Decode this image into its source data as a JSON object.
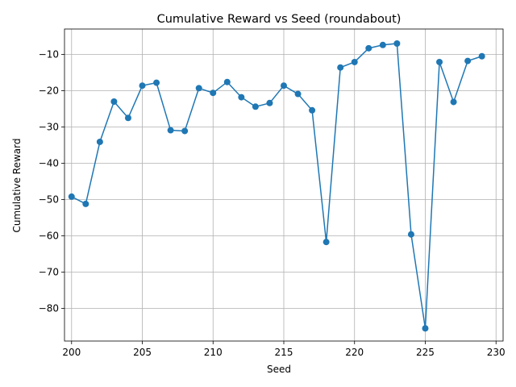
{
  "chart_data": {
    "type": "line",
    "title": "Cumulative Reward vs Seed (roundabout)",
    "xlabel": "Seed",
    "ylabel": "Cumulative Reward",
    "xlim": [
      199.5,
      230.5
    ],
    "ylim": [
      -89,
      -3
    ],
    "xticks": [
      200,
      205,
      210,
      215,
      220,
      225,
      230
    ],
    "yticks": [
      -80,
      -70,
      -60,
      -50,
      -40,
      -30,
      -20,
      -10
    ],
    "grid": true,
    "legend": "none",
    "series": [
      {
        "color": "#1f77b4",
        "marker": "circle",
        "x": [
          200,
          201,
          202,
          203,
          204,
          205,
          206,
          207,
          208,
          209,
          210,
          211,
          212,
          213,
          214,
          215,
          216,
          217,
          218,
          219,
          220,
          221,
          222,
          223,
          224,
          225,
          226,
          227,
          228,
          229
        ],
        "values": [
          -49.2,
          -51.2,
          -34.1,
          -23.0,
          -27.5,
          -18.6,
          -17.8,
          -30.9,
          -31.1,
          -19.3,
          -20.6,
          -17.6,
          -21.8,
          -24.4,
          -23.4,
          -18.6,
          -20.9,
          -25.4,
          -61.7,
          -13.6,
          -12.1,
          -8.3,
          -7.4,
          -7.0,
          -59.6,
          -85.5,
          -12.1,
          -23.1,
          -11.8,
          -10.5
        ]
      }
    ]
  }
}
